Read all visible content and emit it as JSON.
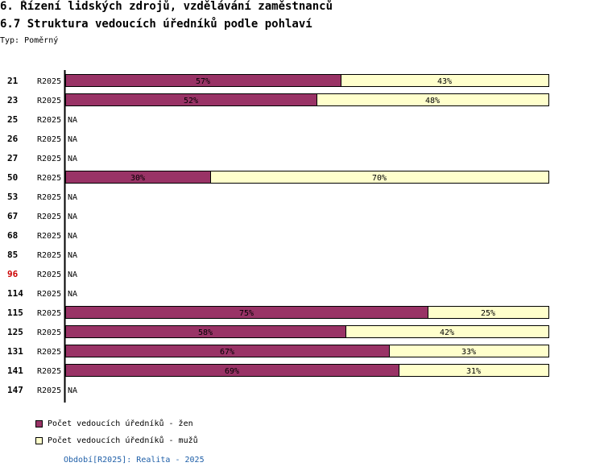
{
  "header": {
    "title": "6. Řízení lidských zdrojů, vzdělávání zaměstnanců",
    "subtitle": "6.7 Struktura vedoucích úředníků podle pohlaví",
    "type_label": "Typ: Poměrný"
  },
  "colors": {
    "women": "#993366",
    "men": "#ffffcc",
    "highlight_label": "#cc0000",
    "period_text": "#1f5fa8"
  },
  "chart_data": {
    "type": "bar",
    "orientation": "horizontal",
    "stacked": true,
    "normalized": true,
    "categories": [
      "21",
      "23",
      "25",
      "26",
      "27",
      "50",
      "53",
      "67",
      "68",
      "85",
      "96",
      "114",
      "115",
      "125",
      "131",
      "141",
      "147"
    ],
    "period": "R2025",
    "highlighted_category": "96",
    "na_label": "NA",
    "series": [
      {
        "name": "Počet vedoucích úředníků - žen",
        "values": [
          57,
          52,
          null,
          null,
          null,
          30,
          null,
          null,
          null,
          null,
          null,
          null,
          75,
          58,
          67,
          69,
          null
        ]
      },
      {
        "name": "Počet vedoucích úředníků - mužů",
        "values": [
          43,
          48,
          null,
          null,
          null,
          70,
          null,
          null,
          null,
          null,
          null,
          null,
          25,
          42,
          33,
          31,
          null
        ]
      }
    ],
    "value_suffix": "%",
    "xlim": [
      0,
      100
    ],
    "legend_position": "bottom-left",
    "grid": false
  },
  "footer": {
    "period_note": "Období[R2025]: Realita - 2025"
  }
}
